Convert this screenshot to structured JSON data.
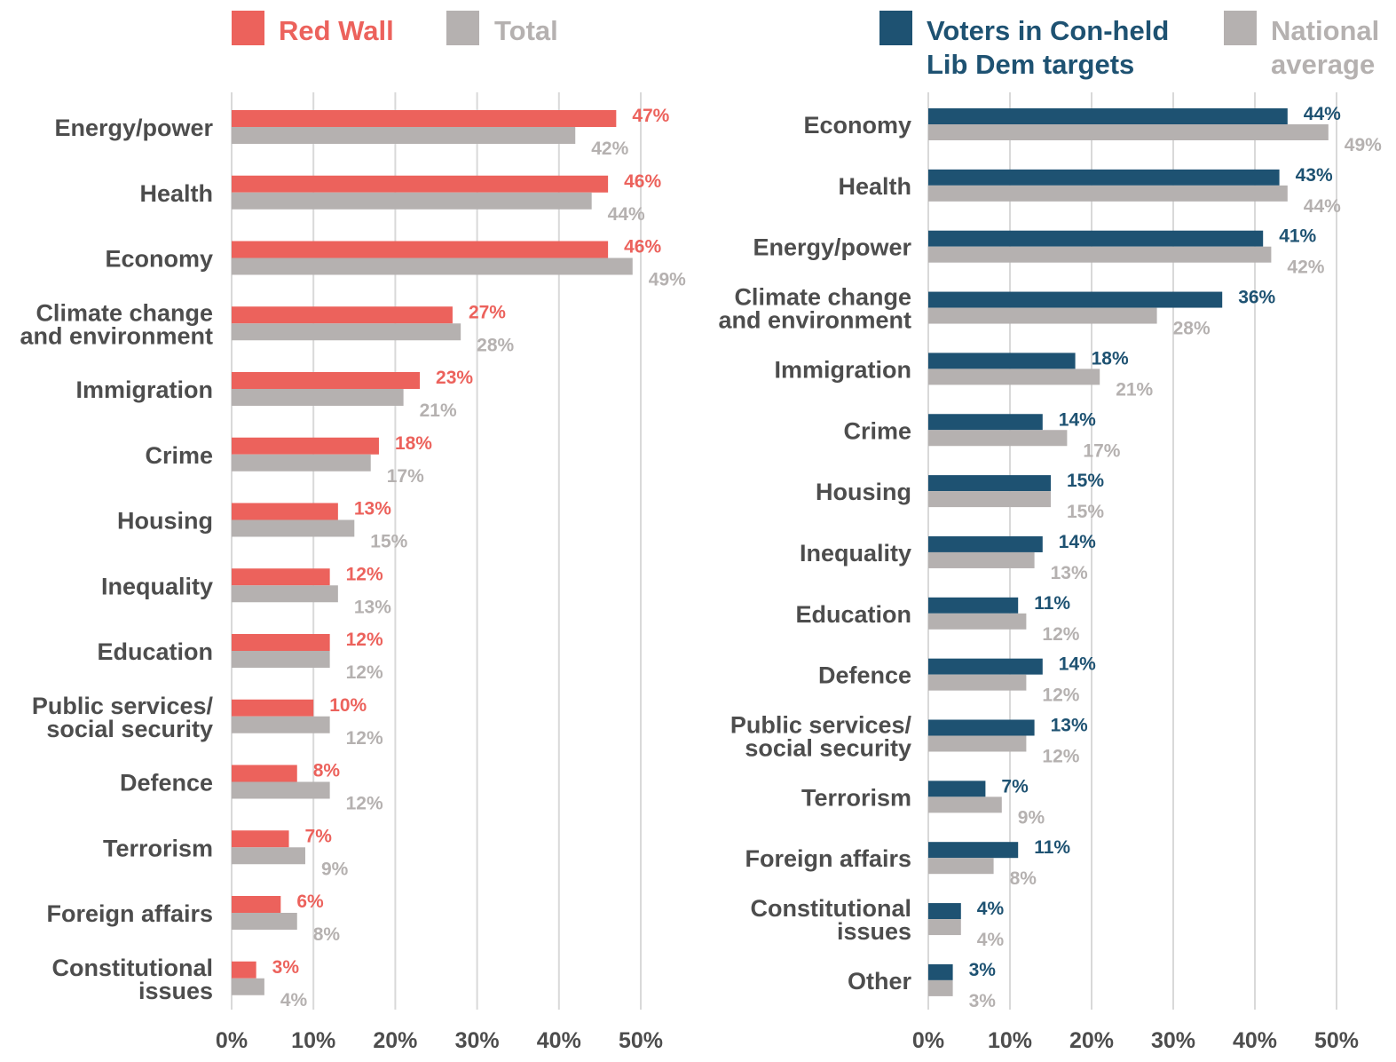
{
  "chart_data": [
    {
      "type": "bar",
      "orientation": "horizontal",
      "title": "",
      "xlabel": "",
      "ylabel": "",
      "xlim": [
        0,
        50
      ],
      "x_ticks": [
        "0%",
        "10%",
        "20%",
        "30%",
        "40%",
        "50%"
      ],
      "grid": true,
      "legend_position": "top",
      "categories": [
        [
          "Energy/power"
        ],
        [
          "Health"
        ],
        [
          "Economy"
        ],
        [
          "Climate change",
          "and environment"
        ],
        [
          "Immigration"
        ],
        [
          "Crime"
        ],
        [
          "Housing"
        ],
        [
          "Inequality"
        ],
        [
          "Education"
        ],
        [
          "Public services/",
          "social security"
        ],
        [
          "Defence"
        ],
        [
          "Terrorism"
        ],
        [
          "Foreign affairs"
        ],
        [
          "Constitutional",
          "issues"
        ]
      ],
      "series": [
        {
          "name": "Red Wall",
          "color": "#ec625c",
          "label_color": "#ec625c",
          "values": [
            47,
            46,
            46,
            27,
            23,
            18,
            13,
            12,
            12,
            10,
            8,
            7,
            6,
            3
          ]
        },
        {
          "name": "Total",
          "color": "#b5b1b0",
          "label_color": "#b5b1b0",
          "values": [
            42,
            44,
            49,
            28,
            21,
            17,
            15,
            13,
            12,
            12,
            12,
            9,
            8,
            4
          ]
        }
      ],
      "legend": [
        {
          "text": [
            "Red Wall"
          ],
          "color": "#ec625c"
        },
        {
          "text": [
            "Total"
          ],
          "color": "#b5b1b0"
        }
      ]
    },
    {
      "type": "bar",
      "orientation": "horizontal",
      "title": "",
      "xlabel": "",
      "ylabel": "",
      "xlim": [
        0,
        50
      ],
      "x_ticks": [
        "0%",
        "10%",
        "20%",
        "30%",
        "40%",
        "50%"
      ],
      "grid": true,
      "legend_position": "top",
      "categories": [
        [
          "Economy"
        ],
        [
          "Health"
        ],
        [
          "Energy/power"
        ],
        [
          "Climate change",
          "and environment"
        ],
        [
          "Immigration"
        ],
        [
          "Crime"
        ],
        [
          "Housing"
        ],
        [
          "Inequality"
        ],
        [
          "Education"
        ],
        [
          "Defence"
        ],
        [
          "Public services/",
          "social security"
        ],
        [
          "Terrorism"
        ],
        [
          "Foreign affairs"
        ],
        [
          "Constitutional",
          "issues"
        ],
        [
          "Other"
        ]
      ],
      "series": [
        {
          "name": "Voters in Con-held Lib Dem targets",
          "color": "#1e5272",
          "label_color": "#1e5272",
          "values": [
            44,
            43,
            41,
            36,
            18,
            14,
            15,
            14,
            11,
            14,
            13,
            7,
            11,
            4,
            3
          ]
        },
        {
          "name": "National average",
          "color": "#b5b1b0",
          "label_color": "#b5b1b0",
          "values": [
            49,
            44,
            42,
            28,
            21,
            17,
            15,
            13,
            12,
            12,
            12,
            9,
            8,
            4,
            3
          ]
        }
      ],
      "legend": [
        {
          "text": [
            "Voters in Con-held",
            "Lib Dem targets"
          ],
          "color": "#1e5272"
        },
        {
          "text": [
            "National",
            "average"
          ],
          "color": "#b5b1b0"
        }
      ]
    }
  ]
}
